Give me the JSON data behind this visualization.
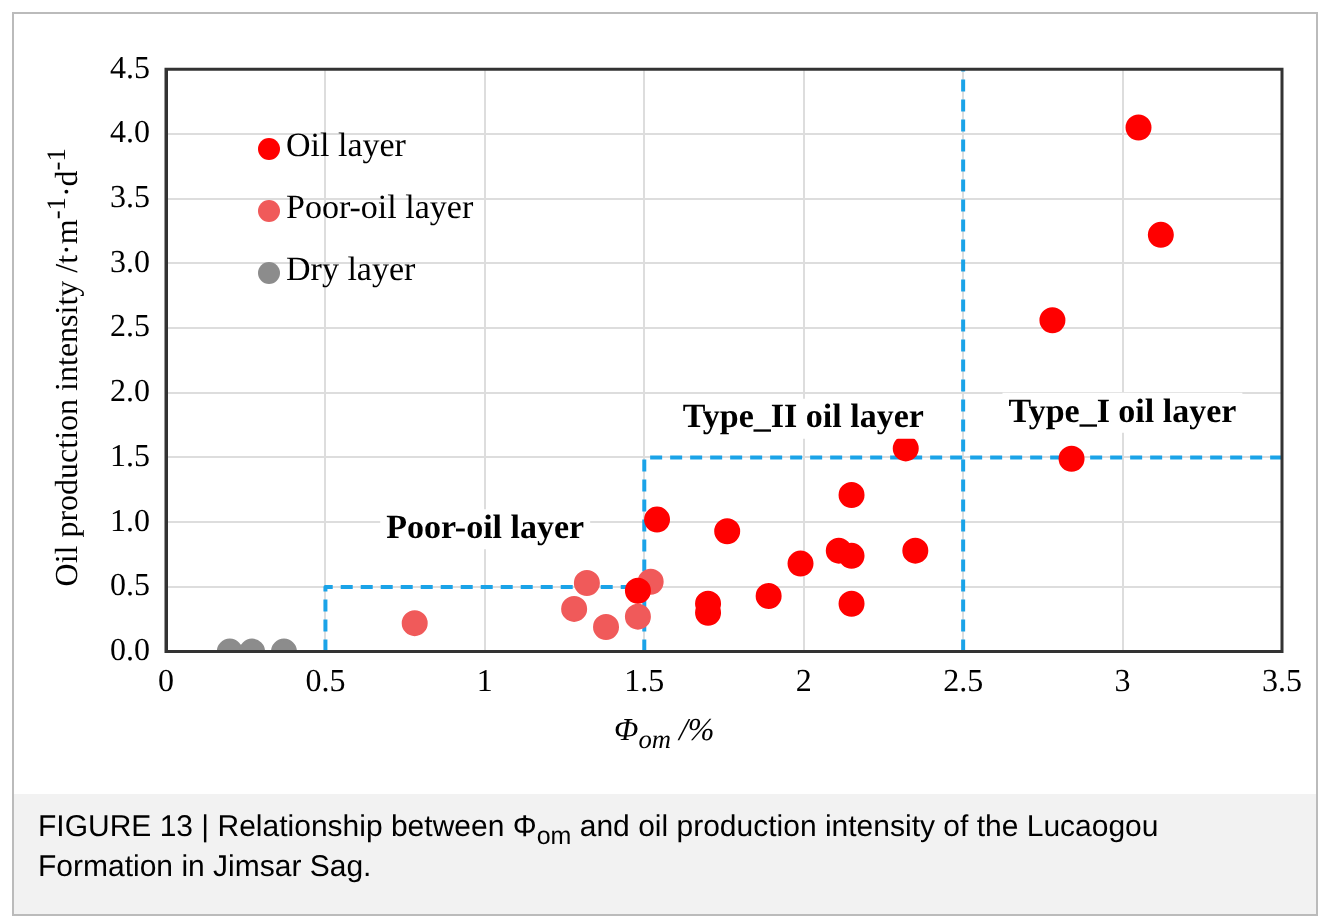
{
  "chart_data": {
    "type": "scatter",
    "xlabel": "Φ$_{om}$ /%",
    "ylabel": "Oil production intensity  /t·m$^{-1}$·d$^{-1}$",
    "xlim": [
      0,
      3.5
    ],
    "xticks": [
      0,
      0.5,
      1,
      1.5,
      2,
      2.5,
      3,
      3.5
    ],
    "ylim": [
      0,
      4.5
    ],
    "yticks": [
      {
        "value": 0,
        "label": "0.0"
      },
      {
        "value": 0.5,
        "label": "0.5"
      },
      {
        "value": 1,
        "label": "1.0"
      },
      {
        "value": 1.5,
        "label": "1.5"
      },
      {
        "value": 2,
        "label": "2.0"
      },
      {
        "value": 2.5,
        "label": "2.5"
      },
      {
        "value": 3,
        "label": "3.0"
      },
      {
        "value": 3.5,
        "label": "3.5"
      },
      {
        "value": 4,
        "label": "4.0"
      },
      {
        "value": 4.5,
        "label": "4.5"
      }
    ],
    "grid": true,
    "legend": "top left",
    "marker": "circle",
    "series": [
      {
        "name": "Oil layer",
        "color": "#ff0000",
        "x": [
          1.54,
          1.76,
          1.7,
          1.7,
          1.89,
          1.99,
          2.11,
          2.15,
          2.15,
          2.15,
          2.32,
          2.35,
          2.78,
          2.84,
          3.05,
          3.12,
          1.48
        ],
        "values": [
          1.02,
          0.93,
          0.37,
          0.3,
          0.43,
          0.68,
          0.78,
          0.74,
          0.37,
          1.21,
          1.57,
          0.78,
          2.56,
          1.49,
          4.05,
          3.22,
          0.47
        ]
      },
      {
        "name": "Poor-oil layer",
        "color": "#f05a5a",
        "x": [
          0.78,
          1.28,
          1.32,
          1.38,
          1.48,
          1.52
        ],
        "values": [
          0.22,
          0.33,
          0.53,
          0.19,
          0.27,
          0.54
        ]
      },
      {
        "name": "Dry layer",
        "color": "#8c8c8c",
        "x": [
          0.2,
          0.27,
          0.37
        ],
        "values": [
          0,
          0,
          0
        ]
      },
      {
        "type": "line",
        "color": "#1aa3e8",
        "line_style": "dashed",
        "marker": "none",
        "x": [
          0.5,
          0.5,
          1.5
        ],
        "values": [
          0,
          0.5,
          0.5
        ]
      },
      {
        "type": "line",
        "color": "#1aa3e8",
        "line_style": "dashed",
        "marker": "none",
        "x": [
          1.5,
          1.5,
          3.5
        ],
        "values": [
          0,
          1.5,
          1.5
        ]
      },
      {
        "type": "line",
        "color": "#1aa3e8",
        "line_style": "dashed",
        "marker": "none",
        "x": [
          2.5,
          2.5
        ],
        "values": [
          0,
          4.5
        ]
      }
    ],
    "annotations": [
      "Poor-oil layer",
      "Type_II oil layer",
      "Type_I oil layer",
      "FIGURE 13 | Relationship between Φ$_{om}$ and oil production intensity of the Lucaogou Formation in Jimsar Sag."
    ]
  }
}
